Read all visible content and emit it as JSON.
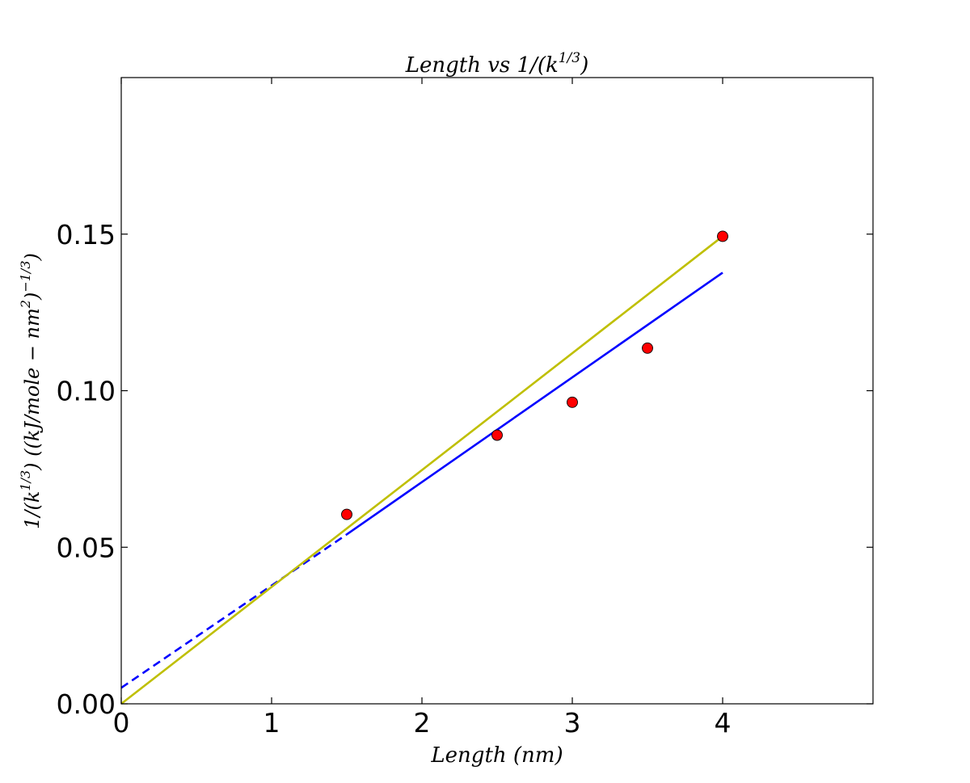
{
  "chart_data": {
    "type": "scatter",
    "title": "Length vs 1/(k^{1/3})",
    "xlabel": "Length (nm)",
    "ylabel": "1/(k^{1/3})  ((kJ/mole − nm^{2})^{−1/3})",
    "xlim": [
      0,
      5
    ],
    "ylim": [
      0,
      0.2
    ],
    "xticks": [
      0,
      1,
      2,
      3,
      4
    ],
    "xtick_labels": [
      "0",
      "1",
      "2",
      "3",
      "4"
    ],
    "yticks": [
      0.0,
      0.05,
      0.1,
      0.15
    ],
    "ytick_labels": [
      "0.00",
      "0.05",
      "0.10",
      "0.15"
    ],
    "grid": false,
    "series": [
      {
        "kind": "scatter",
        "color": "#ff0000",
        "x": [
          1.5,
          2.5,
          3.0,
          3.5,
          4.0
        ],
        "y": [
          0.0605,
          0.0858,
          0.0963,
          0.1136,
          0.1493
        ]
      },
      {
        "kind": "line",
        "color": "#0000ff",
        "style": "solid",
        "x": [
          1.5,
          4.0
        ],
        "y": [
          0.0541,
          0.1377
        ]
      },
      {
        "kind": "line",
        "color": "#0000ff",
        "style": "dashed",
        "x": [
          0.0,
          1.5
        ],
        "y": [
          0.0051,
          0.0541
        ]
      },
      {
        "kind": "line",
        "color": "#bfbf00",
        "style": "solid",
        "x": [
          0.0,
          4.0
        ],
        "y": [
          0.0,
          0.1493
        ]
      }
    ]
  }
}
